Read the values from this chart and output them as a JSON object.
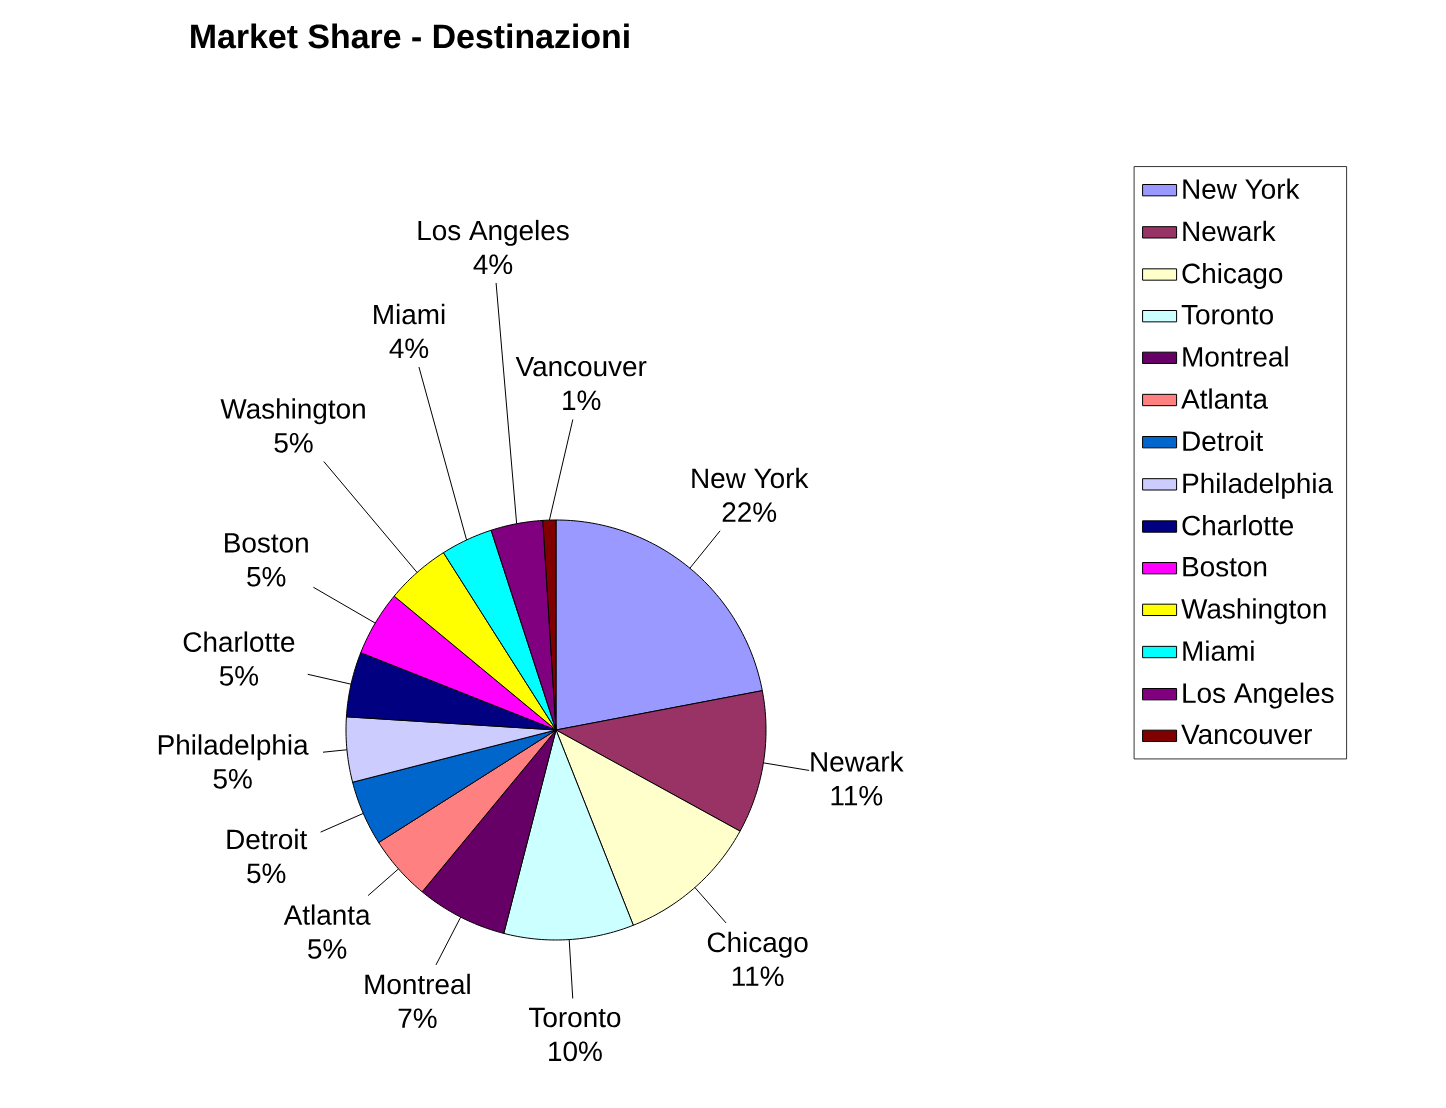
{
  "chart_data": {
    "type": "pie",
    "title": "Market Share - Destinazioni",
    "categories": [
      "New York",
      "Newark",
      "Chicago",
      "Toronto",
      "Montreal",
      "Atlanta",
      "Detroit",
      "Philadelphia",
      "Charlotte",
      "Boston",
      "Washington",
      "Miami",
      "Los Angeles",
      "Vancouver"
    ],
    "values": [
      22,
      11,
      11,
      10,
      7,
      5,
      5,
      5,
      5,
      5,
      5,
      4,
      4,
      1
    ],
    "colors": [
      "#9999ff",
      "#993366",
      "#ffffcc",
      "#ccffff",
      "#660066",
      "#ff8080",
      "#0066cc",
      "#ccccff",
      "#000080",
      "#ff00ff",
      "#ffff00",
      "#00ffff",
      "#800080",
      "#800000"
    ],
    "value_labels": [
      "22%",
      "11%",
      "11%",
      "10%",
      "7%",
      "5%",
      "5%",
      "5%",
      "5%",
      "5%",
      "5%",
      "4%",
      "4%",
      "1%"
    ],
    "legend": "right"
  }
}
